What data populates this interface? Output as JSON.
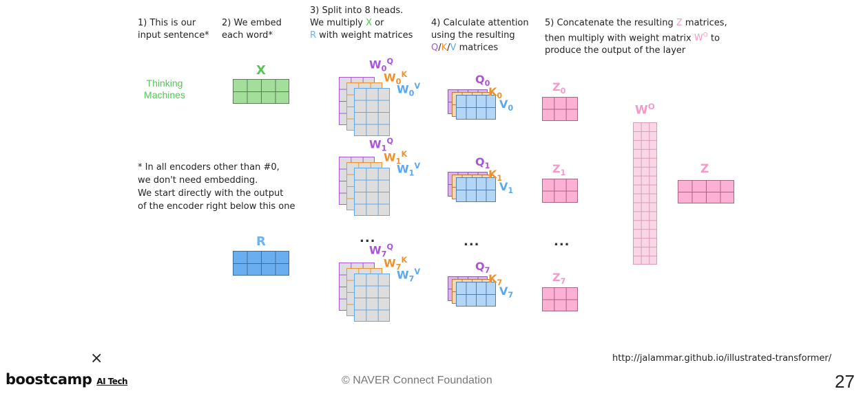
{
  "colors": {
    "x_green": "#55c455",
    "x_fill": "#a3de9b",
    "r_blue": "#6cb4f0",
    "r_fill": "#6aaeef",
    "q_purple": "#a855d6",
    "q_fill": "#dcb2ec",
    "k_orange": "#f0922b",
    "k_fill": "#fbd7b0",
    "v_blue": "#5aa8ee",
    "v_fill": "#b3d6f7",
    "w_fill": "#dddddd",
    "z_pink": "#f49ac8",
    "z_fill": "#fbb0d4",
    "wo_fill": "#f9d6e6"
  },
  "steps": [
    {
      "text": "1) This is our\ninput sentence*"
    },
    {
      "text": "2) We embed\neach word*"
    },
    {
      "text": "3) Split into 8 heads.\nWe multiply X or\nR with weight matrices",
      "rich": [
        [
          "We multiply ",
          "x_green",
          "X",
          " or"
        ],
        [
          "R",
          " with weight matrices"
        ]
      ]
    },
    {
      "text": "4) Calculate attention\nusing the resulting\nQ/K/V matrices"
    },
    {
      "text": "5) Concatenate the resulting Z matrices,\nthen multiply with weight matrix WO to\nproduce the output of the layer"
    }
  ],
  "sentence": "Thinking\nMachines",
  "note": "* In all encoders other than #0,\nwe don't need embedding.\nWe start directly with the output\nof the encoder right below this one",
  "labels": {
    "x": "X",
    "r": "R",
    "wo": "W",
    "wo_sup": "O",
    "z_final": "Z",
    "dots": "..."
  },
  "heads": [
    {
      "index": "0",
      "w_letter": "W",
      "q": "Q",
      "k": "K",
      "v": "V",
      "z": "Z"
    },
    {
      "index": "1",
      "w_letter": "W",
      "q": "Q",
      "k": "K",
      "v": "V",
      "z": "Z"
    },
    {
      "index": "7",
      "w_letter": "W",
      "q": "Q",
      "k": "K",
      "v": "V",
      "z": "Z"
    }
  ],
  "footer": {
    "source_url": "http://jalammar.github.io/illustrated-transformer/",
    "copyright": "© NAVER Connect Foundation",
    "page_number": "27",
    "logo_main": "boostcamp",
    "logo_sub": "AI Tech",
    "logo_mark": "×"
  }
}
